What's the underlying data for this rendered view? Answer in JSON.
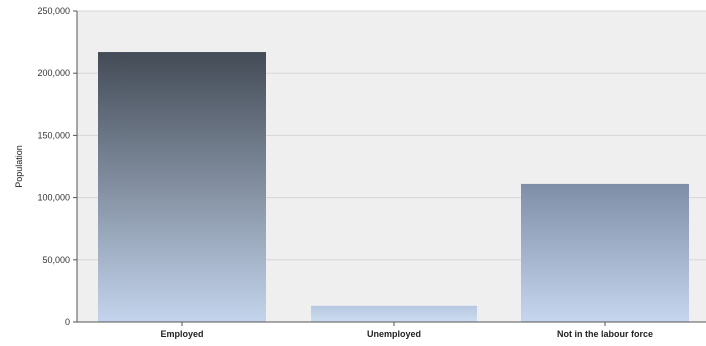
{
  "chart_data": {
    "type": "bar",
    "title": "",
    "xlabel": "",
    "ylabel": "Population",
    "categories": [
      "Employed",
      "Unemployed",
      "Not in the labour force"
    ],
    "values": [
      217000,
      13000,
      111000
    ],
    "ylim": [
      0,
      250000
    ],
    "yticks": [
      0,
      50000,
      100000,
      150000,
      200000,
      250000
    ],
    "ytick_labels": [
      "0",
      "50,000",
      "100,000",
      "150,000",
      "200,000",
      "250,000"
    ],
    "grid": true,
    "legend": "none",
    "colors": {
      "plot_background": "#efefef",
      "gridline": "#d6d6d6",
      "axis": "#555555",
      "employed_top": "#434b56",
      "employed_bottom": "#c3d4ec",
      "unemployed_top": "#b6c8e0",
      "unemployed_bottom": "#cddcf0",
      "notlabour_top": "#7e8ea6",
      "notlabour_bottom": "#c6d6ee"
    }
  }
}
